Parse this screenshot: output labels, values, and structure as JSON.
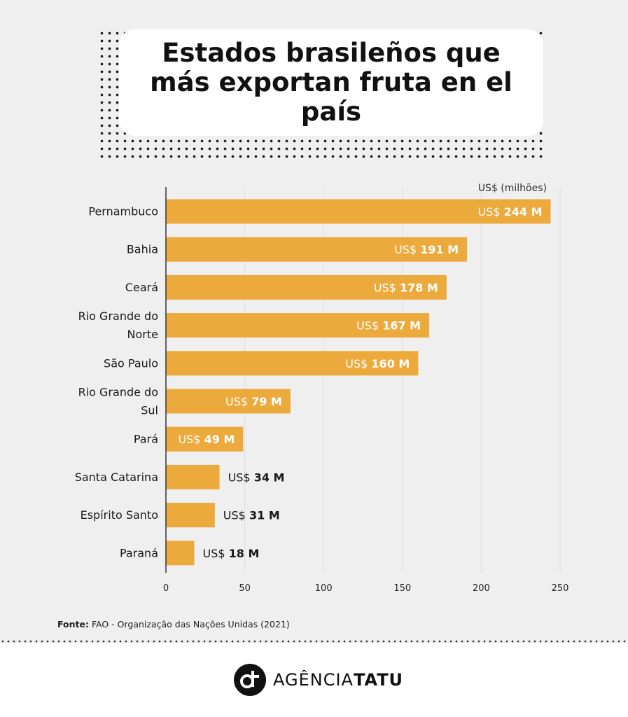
{
  "title": "Estados brasileños que más exportan fruta en el país",
  "source": {
    "prefix": "Fonte:",
    "text": "FAO - Organização das Nações Unidas (2021)"
  },
  "footer": {
    "brand_light": "AGÊNCIA",
    "brand_bold": "TATU"
  },
  "colors": {
    "bar": "#ecaa3d",
    "background": "#efefef"
  },
  "chart_data": {
    "type": "bar",
    "orientation": "horizontal",
    "unit_label": "US$ (milhões)",
    "value_prefix": "US$",
    "value_suffix": "M",
    "categories": [
      [
        "Pernambuco"
      ],
      [
        "Bahia"
      ],
      [
        "Ceará"
      ],
      [
        "Rio Grande do",
        "Norte"
      ],
      [
        "São Paulo"
      ],
      [
        "Rio Grande do",
        "Sul"
      ],
      [
        "Pará"
      ],
      [
        "Santa Catarina"
      ],
      [
        "Espírito Santo"
      ],
      [
        "Paraná"
      ]
    ],
    "values": [
      244,
      191,
      178,
      167,
      160,
      79,
      49,
      34,
      31,
      18
    ],
    "xlim": [
      0,
      250
    ],
    "xticks": [
      0,
      50,
      100,
      150,
      200,
      250
    ],
    "grid": true
  }
}
